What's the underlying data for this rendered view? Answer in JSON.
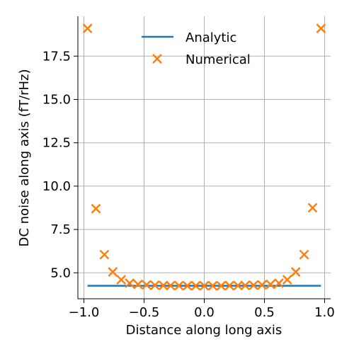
{
  "colors": {
    "analytic": "#1f77b4",
    "numerical": "#ff7f0e",
    "grid": "#b0b0b0",
    "axis": "#000000"
  },
  "chart_data": {
    "type": "line",
    "xlabel": "Distance along long axis",
    "ylabel": "DC noise along axis (fT/rHz)",
    "xlim": [
      -1.05,
      1.05
    ],
    "ylim": [
      3.5,
      19.8
    ],
    "xticks": [
      -1.0,
      -0.5,
      0.0,
      0.5,
      1.0
    ],
    "xtick_labels": [
      "−1.0",
      "−0.5",
      "0.0",
      "0.5",
      "1.0"
    ],
    "yticks": [
      5.0,
      7.5,
      10.0,
      12.5,
      15.0,
      17.5
    ],
    "ytick_labels": [
      "5.0",
      "7.5",
      "10.0",
      "12.5",
      "15.0",
      "17.5"
    ],
    "grid": true,
    "legend_position": "top-center",
    "series": [
      {
        "name": "Analytic",
        "style": "line",
        "x": [
          -0.97,
          0.97
        ],
        "y": [
          4.25,
          4.25
        ]
      },
      {
        "name": "Numerical",
        "style": "x-marker",
        "x": [
          -0.97,
          -0.9,
          -0.83,
          -0.76,
          -0.69,
          -0.62,
          -0.55,
          -0.48,
          -0.41,
          -0.34,
          -0.28,
          -0.21,
          -0.14,
          -0.07,
          0.0,
          0.07,
          0.14,
          0.21,
          0.28,
          0.34,
          0.41,
          0.48,
          0.55,
          0.62,
          0.69,
          0.76,
          0.83,
          0.9,
          0.97
        ],
        "y": [
          19.1,
          8.7,
          6.05,
          5.05,
          4.6,
          4.4,
          4.33,
          4.3,
          4.28,
          4.27,
          4.26,
          4.26,
          4.25,
          4.25,
          4.25,
          4.25,
          4.25,
          4.26,
          4.26,
          4.27,
          4.28,
          4.3,
          4.33,
          4.4,
          4.6,
          5.05,
          6.05,
          8.75,
          19.1
        ]
      }
    ]
  }
}
